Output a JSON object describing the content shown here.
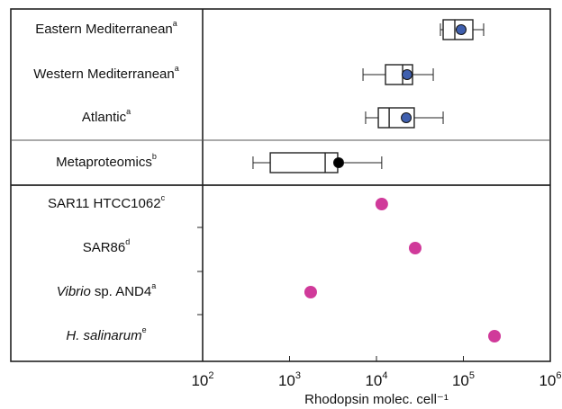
{
  "chart_data": {
    "type": "box",
    "xlabel": "Rhodopsin molec. cell⁻¹",
    "log_x": true,
    "xlim": [
      100,
      1000000
    ],
    "xticks": [
      {
        "value": 100,
        "label": "10",
        "power": "2"
      },
      {
        "value": 1000,
        "label": "10",
        "power": "3"
      },
      {
        "value": 10000,
        "label": "10",
        "power": "4"
      },
      {
        "value": 100000,
        "label": "10",
        "power": "5"
      },
      {
        "value": 1000000,
        "label": "10",
        "power": "6"
      }
    ],
    "boxes": [
      {
        "name": "Eastern Mediterranean",
        "note": "a",
        "whislo": 54400,
        "q1": 58500,
        "med": 79700,
        "q3": 128500,
        "whishi": 171000,
        "mean": 94200,
        "mean_color": "#3f5fae"
      },
      {
        "name": "Western Mediterranean",
        "note": "a",
        "whislo": 7000,
        "q1": 12700,
        "med": 20000,
        "q3": 26000,
        "whishi": 45000,
        "mean": 22500,
        "mean_color": "#3f5fae"
      },
      {
        "name": "Atlantic",
        "note": "a",
        "whislo": 7500,
        "q1": 10500,
        "med": 14000,
        "q3": 27200,
        "whishi": 58500,
        "mean": 22000,
        "mean_color": "#3f5fae"
      },
      {
        "name": "Metaproteomics",
        "note": "b",
        "whislo": 380,
        "q1": 600,
        "med": 2570,
        "q3": 3580,
        "whishi": 11500,
        "mean": 3670,
        "mean_color": "#000000"
      }
    ],
    "points": [
      {
        "name": "SAR11 HTCC1062",
        "note": "c",
        "value": 11500
      },
      {
        "name": "SAR86",
        "note": "d",
        "value": 27900
      },
      {
        "name_italic": "Vibrio",
        "name": "sp. AND4",
        "note": "a",
        "value": 1750
      },
      {
        "name_italic": "H. salinarum",
        "note": "e",
        "value": 228000
      }
    ],
    "point_color": "#d03a9a"
  }
}
